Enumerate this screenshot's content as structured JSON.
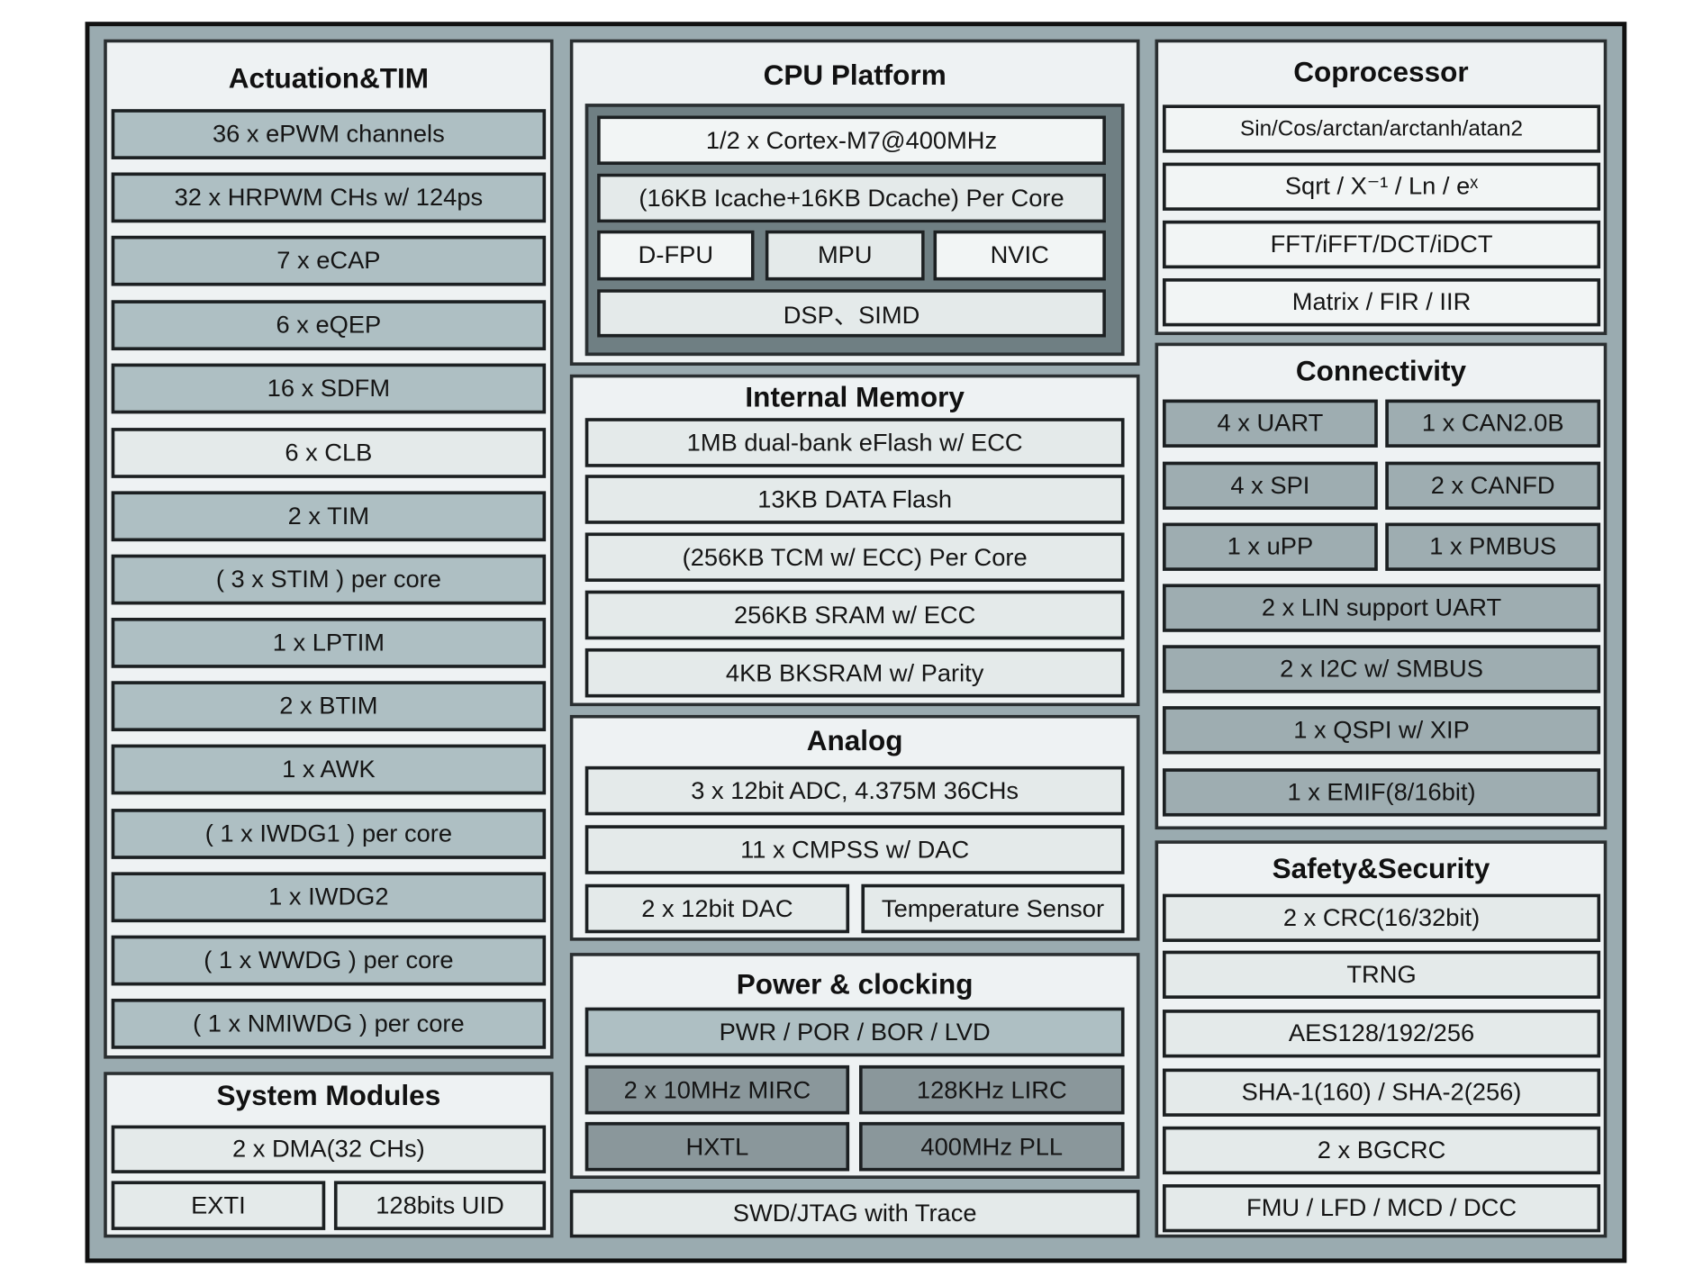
{
  "colors": {
    "frame_bg": "#9aabb0",
    "panel_bg": "#eef2f3",
    "cpu_core_bg": "#6f7f83",
    "block_medium": "#aebfc3",
    "block_light": "#e4eaea",
    "block_white": "#f2f5f5",
    "block_dark": "#8a979b",
    "border": "#111111"
  },
  "actuation": {
    "title": "Actuation&TIM",
    "items": [
      "36 x ePWM channels",
      "32 x HRPWM CHs w/ 124ps",
      "7 x eCAP",
      "6 x eQEP",
      "16 x SDFM",
      "6 x CLB",
      "2 x TIM",
      "( 3 x STIM ) per core",
      "1 x LPTIM",
      "2 x BTIM",
      "1 x AWK",
      "( 1 x IWDG1 ) per core",
      "1 x IWDG2",
      "( 1 x WWDG ) per core",
      "( 1 x NMIWDG ) per core"
    ]
  },
  "system_modules": {
    "title": "System Modules",
    "items": [
      "2 x DMA(32 CHs)",
      "EXTI",
      "128bits UID"
    ]
  },
  "cpu_platform": {
    "title": "CPU Platform",
    "items": [
      "1/2 x Cortex-M7@400MHz",
      "(16KB Icache+16KB Dcache) Per Core",
      "D-FPU",
      "MPU",
      "NVIC",
      "DSP、SIMD"
    ]
  },
  "internal_memory": {
    "title": "Internal Memory",
    "items": [
      "1MB dual-bank eFlash w/ ECC",
      "13KB DATA Flash",
      "(256KB TCM w/ ECC) Per Core",
      "256KB SRAM w/ ECC",
      "4KB BKSRAM w/ Parity"
    ]
  },
  "analog": {
    "title": "Analog",
    "items": [
      "3 x 12bit ADC, 4.375M 36CHs",
      "11 x CMPSS w/ DAC",
      "2 x 12bit DAC",
      "Temperature Sensor"
    ]
  },
  "power_clocking": {
    "title": "Power & clocking",
    "items": [
      "PWR / POR / BOR / LVD",
      "2 x 10MHz MIRC",
      "128KHz LIRC",
      "HXTL",
      "400MHz PLL"
    ]
  },
  "debug": {
    "label": "SWD/JTAG with Trace"
  },
  "coprocessor": {
    "title": "Coprocessor",
    "items": [
      "Sin/Cos/arctan/arctanh/atan2",
      "Sqrt / X⁻¹ / Ln / eˣ",
      "FFT/iFFT/DCT/iDCT",
      "Matrix / FIR / IIR"
    ]
  },
  "connectivity": {
    "title": "Connectivity",
    "items": [
      "4 x UART",
      "1 x CAN2.0B",
      "4 x SPI",
      "2 x CANFD",
      "1 x uPP",
      "1 x PMBUS",
      "2 x LIN support UART",
      "2 x I2C w/ SMBUS",
      "1 x QSPI w/ XIP",
      "1 x EMIF(8/16bit)"
    ]
  },
  "safety_security": {
    "title": "Safety&Security",
    "items": [
      "2 x CRC(16/32bit)",
      "TRNG",
      "AES128/192/256",
      "SHA-1(160) / SHA-2(256)",
      "2 x BGCRC",
      "FMU / LFD / MCD / DCC"
    ]
  }
}
